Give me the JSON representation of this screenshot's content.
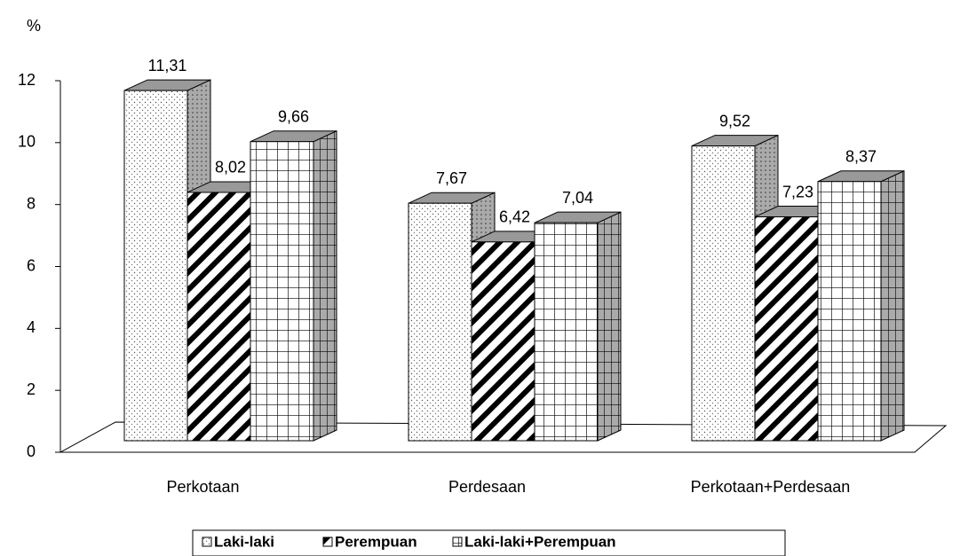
{
  "chart_data": {
    "type": "bar3d",
    "y_label": "%",
    "categories": [
      "Perkotaan",
      "Perdesaan",
      "Perkotaan+Perdesaan"
    ],
    "series": [
      {
        "name": "Laki-laki",
        "color": "#000000",
        "pattern": "dots",
        "values": [
          11.31,
          7.67,
          9.52
        ],
        "value_labels": [
          "11,31",
          "7,67",
          "9,52"
        ]
      },
      {
        "name": "Perempuan",
        "color": "#000000",
        "pattern": "stripes",
        "values": [
          8.02,
          6.42,
          7.23
        ],
        "value_labels": [
          "8,02",
          "6,42",
          "7,23"
        ]
      },
      {
        "name": "Laki-laki+Perempuan",
        "color": "#000000",
        "pattern": "grid",
        "values": [
          9.66,
          7.04,
          8.37
        ],
        "value_labels": [
          "9,66",
          "7,04",
          "8,37"
        ]
      }
    ],
    "ylim": [
      0,
      12
    ],
    "yticks": [
      0,
      2,
      4,
      6,
      8,
      10,
      12
    ]
  }
}
